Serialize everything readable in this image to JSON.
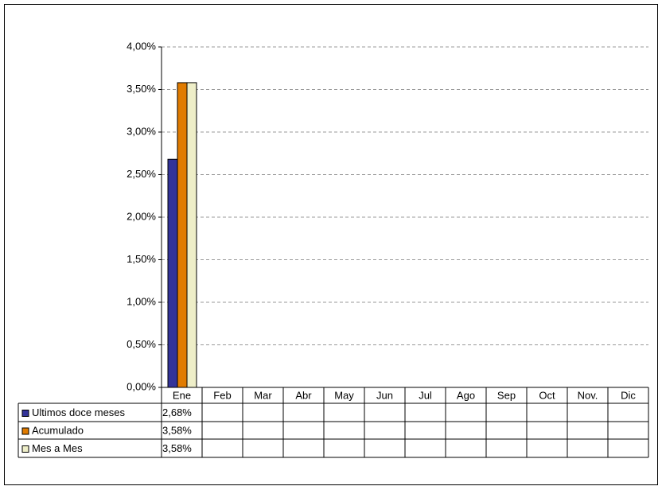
{
  "chart_data": {
    "type": "bar",
    "categories": [
      "Ene",
      "Feb",
      "Mar",
      "Abr",
      "May",
      "Jun",
      "Jul",
      "Ago",
      "Sep",
      "Oct",
      "Nov.",
      "Dic"
    ],
    "series": [
      {
        "name": "Ultimos doce meses",
        "color": "#333399",
        "values": [
          2.68,
          null,
          null,
          null,
          null,
          null,
          null,
          null,
          null,
          null,
          null,
          null
        ],
        "value_labels": [
          "2,68%",
          null,
          null,
          null,
          null,
          null,
          null,
          null,
          null,
          null,
          null,
          null
        ]
      },
      {
        "name": "Acumulado",
        "color": "#e07b00",
        "values": [
          3.58,
          null,
          null,
          null,
          null,
          null,
          null,
          null,
          null,
          null,
          null,
          null
        ],
        "value_labels": [
          "3,58%",
          null,
          null,
          null,
          null,
          null,
          null,
          null,
          null,
          null,
          null,
          null
        ]
      },
      {
        "name": "Mes a Mes",
        "color": "#eeeec8",
        "values": [
          3.58,
          null,
          null,
          null,
          null,
          null,
          null,
          null,
          null,
          null,
          null,
          null
        ],
        "value_labels": [
          "3,58%",
          null,
          null,
          null,
          null,
          null,
          null,
          null,
          null,
          null,
          null,
          null
        ]
      }
    ],
    "ylim": [
      0,
      4
    ],
    "yticks": [
      {
        "value": 0,
        "label": "0,00%"
      },
      {
        "value": 0.5,
        "label": "0,50%"
      },
      {
        "value": 1,
        "label": "1,00%"
      },
      {
        "value": 1.5,
        "label": "1,50%"
      },
      {
        "value": 2,
        "label": "2,00%"
      },
      {
        "value": 2.5,
        "label": "2,50%"
      },
      {
        "value": 3,
        "label": "3,00%"
      },
      {
        "value": 3.5,
        "label": "3,50%"
      },
      {
        "value": 4,
        "label": "4,00%"
      }
    ],
    "grid": true
  }
}
